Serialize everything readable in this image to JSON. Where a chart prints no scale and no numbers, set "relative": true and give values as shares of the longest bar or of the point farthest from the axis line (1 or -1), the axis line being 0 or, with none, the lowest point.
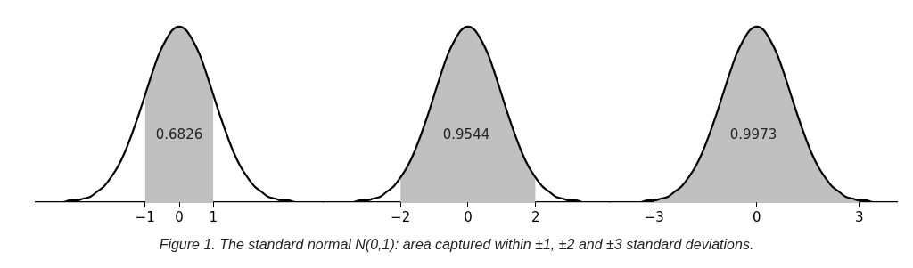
{
  "chart_data": [
    {
      "type": "line",
      "relative": true,
      "tick_labels": "x",
      "xlim": [
        -4.2,
        4.2
      ],
      "xticks": [
        {
          "value": -1,
          "label": "−1"
        },
        0,
        1
      ],
      "annotations": [
        "0.6826"
      ],
      "series": [
        {
          "type": "area",
          "color": "#c0c0c0",
          "x": [
            -1,
            -0.8,
            -0.6,
            -0.4,
            -0.2,
            0,
            0.2,
            0.4,
            0.6,
            0.8,
            1
          ],
          "values": [
            0.61,
            0.73,
            0.84,
            0.92,
            0.98,
            1,
            0.98,
            0.92,
            0.84,
            0.73,
            0.61
          ]
        },
        {
          "type": "line",
          "color": "#000000",
          "x": [
            -3.8,
            -3.6,
            -3.4,
            -3.2,
            -3,
            -2.8,
            -2.6,
            -2.4,
            -2.2,
            -2,
            -1.8,
            -1.6,
            -1.4,
            -1.2,
            -1,
            -0.8,
            -0.6,
            -0.4,
            -0.2,
            0,
            0.2,
            0.4,
            0.6,
            0.8,
            1,
            1.2,
            1.4,
            1.6,
            1.8,
            2,
            2.2,
            2.4,
            2.6,
            2.8,
            3,
            3.2,
            3.4,
            3.6,
            3.8
          ],
          "values": [
            0,
            0,
            0,
            0.01,
            0.01,
            0.02,
            0.03,
            0.06,
            0.09,
            0.14,
            0.2,
            0.28,
            0.38,
            0.49,
            0.61,
            0.73,
            0.84,
            0.92,
            0.98,
            1,
            0.98,
            0.92,
            0.84,
            0.73,
            0.61,
            0.49,
            0.38,
            0.28,
            0.2,
            0.14,
            0.09,
            0.06,
            0.03,
            0.02,
            0.01,
            0.01,
            0,
            0,
            0
          ]
        }
      ]
    },
    {
      "type": "line",
      "relative": true,
      "tick_labels": "x",
      "xlim": [
        -4.3,
        4.2
      ],
      "xticks": [
        {
          "value": -2,
          "label": "−2"
        },
        0,
        2
      ],
      "annotations": [
        "0.9544"
      ],
      "series": [
        {
          "type": "area",
          "color": "#c0c0c0",
          "x": [
            -2,
            -1.8,
            -1.6,
            -1.4,
            -1.2,
            -1,
            -0.8,
            -0.6,
            -0.4,
            -0.2,
            0,
            0.2,
            0.4,
            0.6,
            0.8,
            1,
            1.2,
            1.4,
            1.6,
            1.8,
            2
          ],
          "values": [
            0.14,
            0.2,
            0.28,
            0.38,
            0.49,
            0.61,
            0.73,
            0.84,
            0.92,
            0.98,
            1,
            0.98,
            0.92,
            0.84,
            0.73,
            0.61,
            0.49,
            0.38,
            0.28,
            0.2,
            0.14
          ]
        },
        {
          "type": "line",
          "color": "#000000",
          "x": [
            -3.8,
            -3.6,
            -3.4,
            -3.2,
            -3,
            -2.8,
            -2.6,
            -2.4,
            -2.2,
            -2,
            -1.8,
            -1.6,
            -1.4,
            -1.2,
            -1,
            -0.8,
            -0.6,
            -0.4,
            -0.2,
            0,
            0.2,
            0.4,
            0.6,
            0.8,
            1,
            1.2,
            1.4,
            1.6,
            1.8,
            2,
            2.2,
            2.4,
            2.6,
            2.8,
            3,
            3.2,
            3.4,
            3.6,
            3.8
          ],
          "values": [
            0,
            0,
            0,
            0.01,
            0.01,
            0.02,
            0.03,
            0.06,
            0.09,
            0.14,
            0.2,
            0.28,
            0.38,
            0.49,
            0.61,
            0.73,
            0.84,
            0.92,
            0.98,
            1,
            0.98,
            0.92,
            0.84,
            0.73,
            0.61,
            0.49,
            0.38,
            0.28,
            0.2,
            0.14,
            0.09,
            0.06,
            0.03,
            0.02,
            0.01,
            0.01,
            0,
            0,
            0
          ]
        }
      ]
    },
    {
      "type": "line",
      "relative": true,
      "tick_labels": "x",
      "xlim": [
        -4.3,
        4.1
      ],
      "xticks": [
        {
          "value": -3,
          "label": "−3"
        },
        0,
        3
      ],
      "annotations": [
        "0.9973"
      ],
      "series": [
        {
          "type": "area",
          "color": "#c0c0c0",
          "x": [
            -3,
            -2.8,
            -2.6,
            -2.4,
            -2.2,
            -2,
            -1.8,
            -1.6,
            -1.4,
            -1.2,
            -1,
            -0.8,
            -0.6,
            -0.4,
            -0.2,
            0,
            0.2,
            0.4,
            0.6,
            0.8,
            1,
            1.2,
            1.4,
            1.6,
            1.8,
            2,
            2.2,
            2.4,
            2.6,
            2.8,
            3
          ],
          "values": [
            0.01,
            0.02,
            0.03,
            0.06,
            0.09,
            0.14,
            0.2,
            0.28,
            0.38,
            0.49,
            0.61,
            0.73,
            0.84,
            0.92,
            0.98,
            1,
            0.98,
            0.92,
            0.84,
            0.73,
            0.61,
            0.49,
            0.38,
            0.28,
            0.2,
            0.14,
            0.09,
            0.06,
            0.03,
            0.02,
            0.01
          ]
        },
        {
          "type": "line",
          "color": "#000000",
          "x": [
            -3.8,
            -3.6,
            -3.4,
            -3.2,
            -3,
            -2.8,
            -2.6,
            -2.4,
            -2.2,
            -2,
            -1.8,
            -1.6,
            -1.4,
            -1.2,
            -1,
            -0.8,
            -0.6,
            -0.4,
            -0.2,
            0,
            0.2,
            0.4,
            0.6,
            0.8,
            1,
            1.2,
            1.4,
            1.6,
            1.8,
            2,
            2.2,
            2.4,
            2.6,
            2.8,
            3,
            3.2,
            3.4,
            3.6,
            3.8
          ],
          "values": [
            0,
            0,
            0,
            0.01,
            0.01,
            0.02,
            0.03,
            0.06,
            0.09,
            0.14,
            0.2,
            0.28,
            0.38,
            0.49,
            0.61,
            0.73,
            0.84,
            0.92,
            0.98,
            1,
            0.98,
            0.92,
            0.84,
            0.73,
            0.61,
            0.49,
            0.38,
            0.28,
            0.2,
            0.14,
            0.09,
            0.06,
            0.03,
            0.02,
            0.01,
            0.01,
            0,
            0,
            0
          ]
        }
      ]
    },
    {
      "type": "other",
      "annotations": [
        "Figure 1. The standard normal N(0,1): area captured within ±1, ±2 and ±3 standard deviations."
      ]
    }
  ]
}
